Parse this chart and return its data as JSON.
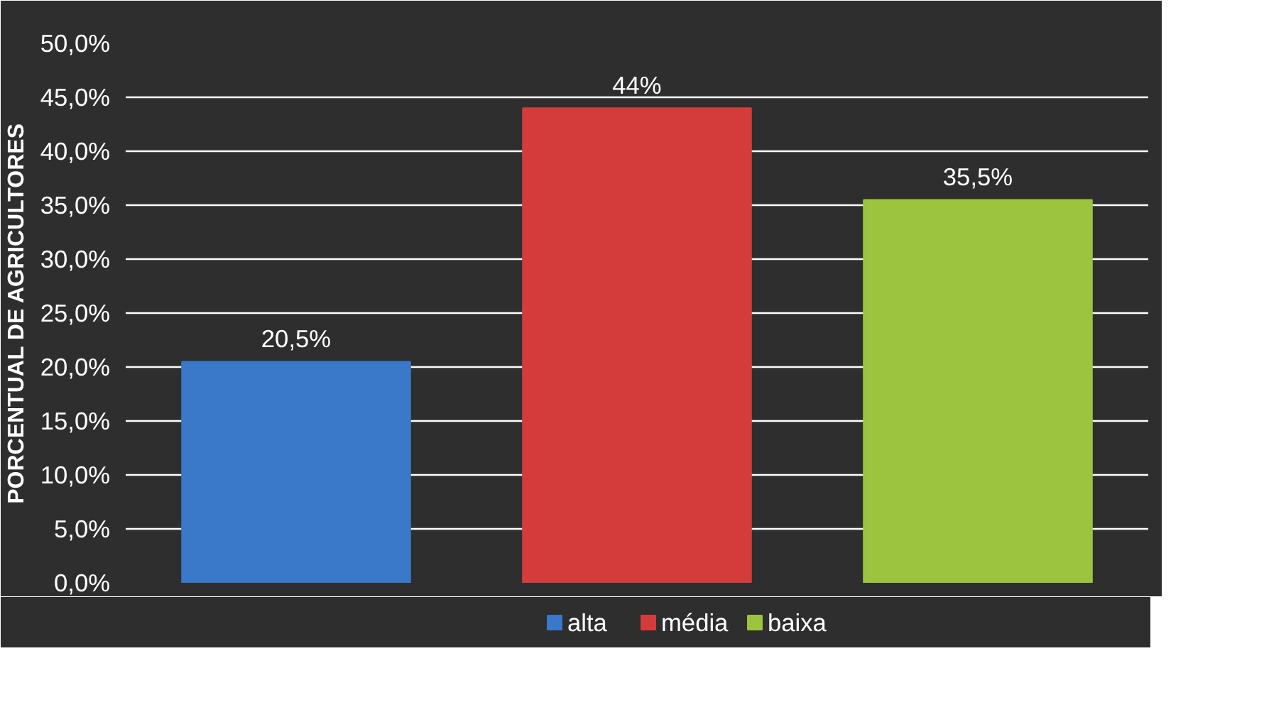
{
  "chart_data": {
    "type": "bar",
    "ylabel": "PORCENTUAL DE AGRICULTORES",
    "categories": [
      null,
      null,
      null
    ],
    "series": [
      {
        "name": "alta",
        "color": "#3a78c9",
        "values": [
          20.5,
          null,
          null
        ],
        "value_labels": [
          "20,5%",
          null,
          null
        ]
      },
      {
        "name": "média",
        "color": "#d43c3c",
        "values": [
          null,
          44,
          null
        ],
        "value_labels": [
          null,
          "44%",
          null
        ]
      },
      {
        "name": "baixa",
        "color": "#9cc43e",
        "values": [
          null,
          null,
          35.5
        ],
        "value_labels": [
          null,
          null,
          "35,5%"
        ]
      }
    ],
    "ylim": [
      0,
      50
    ],
    "yticks": [
      {
        "value": 0,
        "label": "0,0%"
      },
      {
        "value": 5,
        "label": "5,0%"
      },
      {
        "value": 10,
        "label": "10,0%"
      },
      {
        "value": 15,
        "label": "15,0%"
      },
      {
        "value": 20,
        "label": "20,0%"
      },
      {
        "value": 25,
        "label": "25,0%"
      },
      {
        "value": 30,
        "label": "30,0%"
      },
      {
        "value": 35,
        "label": "35,0%"
      },
      {
        "value": 40,
        "label": "40,0%"
      },
      {
        "value": 45,
        "label": "45,0%"
      },
      {
        "value": 50,
        "label": "50,0%"
      }
    ],
    "grid": "y",
    "legend": "bottom"
  }
}
